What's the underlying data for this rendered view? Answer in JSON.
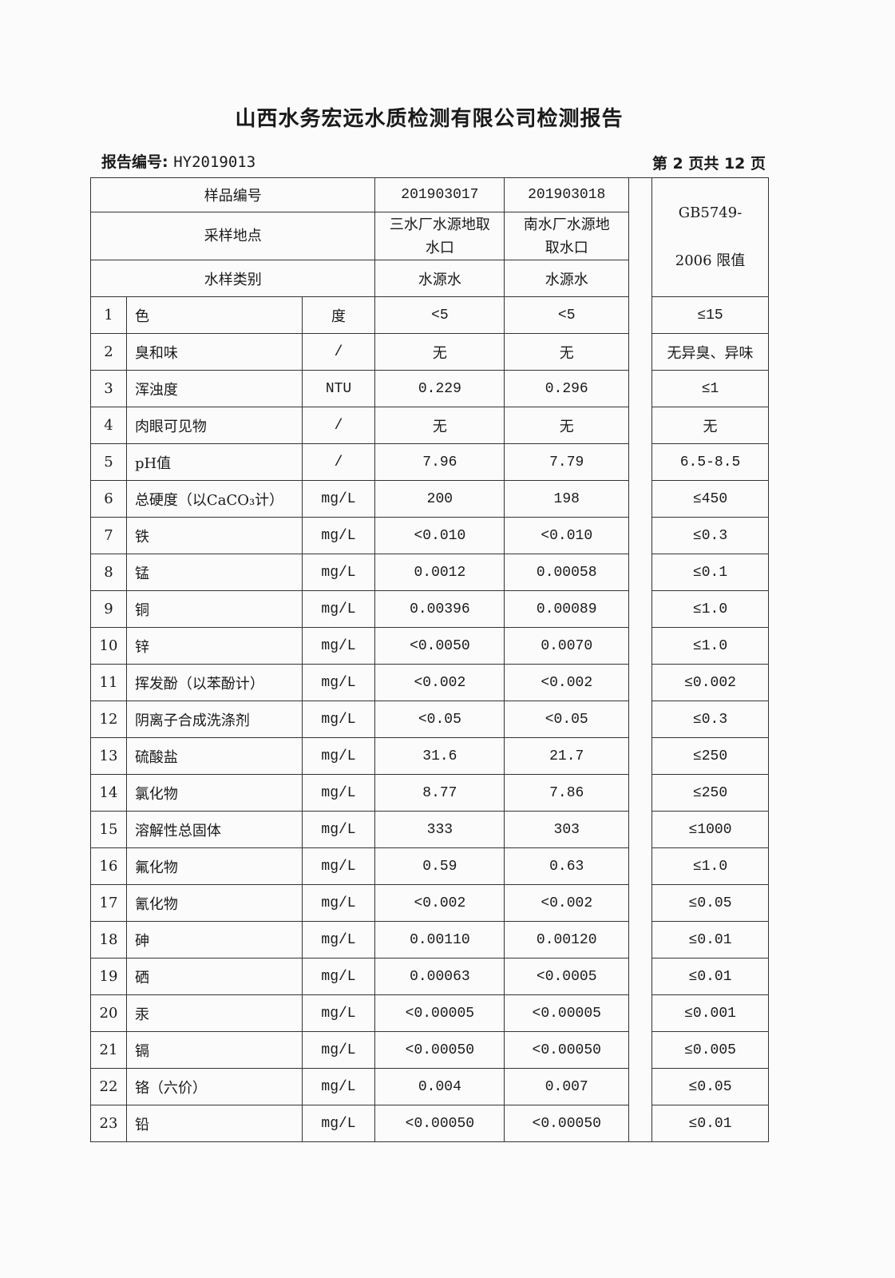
{
  "title": "山西水务宏远水质检测有限公司检测报告",
  "report_no_label": "报告编号:",
  "report_no": "HY2019013",
  "page_info": "第 2 页共 12 页",
  "header": {
    "sample_no_label": "样品编号",
    "sample_no": [
      "201903017",
      "201903018"
    ],
    "location_label": "采样地点",
    "location": [
      "三水厂水源地取水口",
      "南水厂水源地取水口"
    ],
    "type_label": "水样类别",
    "type": [
      "水源水",
      "水源水"
    ],
    "limit_label_1": "GB5749-",
    "limit_label_2": "2006 限值"
  },
  "rows": [
    {
      "no": "1",
      "name": "色",
      "unit": "度",
      "v1": "<5",
      "v2": "<5",
      "limit": "≤15"
    },
    {
      "no": "2",
      "name": "臭和味",
      "unit": "/",
      "v1": "无",
      "v2": "无",
      "limit": "无异臭、异味"
    },
    {
      "no": "3",
      "name": "浑浊度",
      "unit": "NTU",
      "v1": "0.229",
      "v2": "0.296",
      "limit": "≤1"
    },
    {
      "no": "4",
      "name": "肉眼可见物",
      "unit": "/",
      "v1": "无",
      "v2": "无",
      "limit": "无"
    },
    {
      "no": "5",
      "name": "pH值",
      "unit": "/",
      "v1": "7.96",
      "v2": "7.79",
      "limit": "6.5-8.5"
    },
    {
      "no": "6",
      "name": "总硬度（以CaCO₃计）",
      "unit": "mg/L",
      "v1": "200",
      "v2": "198",
      "limit": "≤450"
    },
    {
      "no": "7",
      "name": "铁",
      "unit": "mg/L",
      "v1": "<0.010",
      "v2": "<0.010",
      "limit": "≤0.3"
    },
    {
      "no": "8",
      "name": "锰",
      "unit": "mg/L",
      "v1": "0.0012",
      "v2": "0.00058",
      "limit": "≤0.1"
    },
    {
      "no": "9",
      "name": "铜",
      "unit": "mg/L",
      "v1": "0.00396",
      "v2": "0.00089",
      "limit": "≤1.0"
    },
    {
      "no": "10",
      "name": "锌",
      "unit": "mg/L",
      "v1": "<0.0050",
      "v2": "0.0070",
      "limit": "≤1.0"
    },
    {
      "no": "11",
      "name": "挥发酚（以苯酚计）",
      "unit": "mg/L",
      "v1": "<0.002",
      "v2": "<0.002",
      "limit": "≤0.002"
    },
    {
      "no": "12",
      "name": "阴离子合成洗涤剂",
      "unit": "mg/L",
      "v1": "<0.05",
      "v2": "<0.05",
      "limit": "≤0.3"
    },
    {
      "no": "13",
      "name": "硫酸盐",
      "unit": "mg/L",
      "v1": "31.6",
      "v2": "21.7",
      "limit": "≤250"
    },
    {
      "no": "14",
      "name": "氯化物",
      "unit": "mg/L",
      "v1": "8.77",
      "v2": "7.86",
      "limit": "≤250"
    },
    {
      "no": "15",
      "name": "溶解性总固体",
      "unit": "mg/L",
      "v1": "333",
      "v2": "303",
      "limit": "≤1000"
    },
    {
      "no": "16",
      "name": "氟化物",
      "unit": "mg/L",
      "v1": "0.59",
      "v2": "0.63",
      "limit": "≤1.0"
    },
    {
      "no": "17",
      "name": "氰化物",
      "unit": "mg/L",
      "v1": "<0.002",
      "v2": "<0.002",
      "limit": "≤0.05"
    },
    {
      "no": "18",
      "name": "砷",
      "unit": "mg/L",
      "v1": "0.00110",
      "v2": "0.00120",
      "limit": "≤0.01"
    },
    {
      "no": "19",
      "name": "硒",
      "unit": "mg/L",
      "v1": "0.00063",
      "v2": "<0.0005",
      "limit": "≤0.01"
    },
    {
      "no": "20",
      "name": "汞",
      "unit": "mg/L",
      "v1": "<0.00005",
      "v2": "<0.00005",
      "limit": "≤0.001"
    },
    {
      "no": "21",
      "name": "镉",
      "unit": "mg/L",
      "v1": "<0.00050",
      "v2": "<0.00050",
      "limit": "≤0.005"
    },
    {
      "no": "22",
      "name": "铬（六价）",
      "unit": "mg/L",
      "v1": "0.004",
      "v2": "0.007",
      "limit": "≤0.05"
    },
    {
      "no": "23",
      "name": "铅",
      "unit": "mg/L",
      "v1": "<0.00050",
      "v2": "<0.00050",
      "limit": "≤0.01"
    }
  ]
}
